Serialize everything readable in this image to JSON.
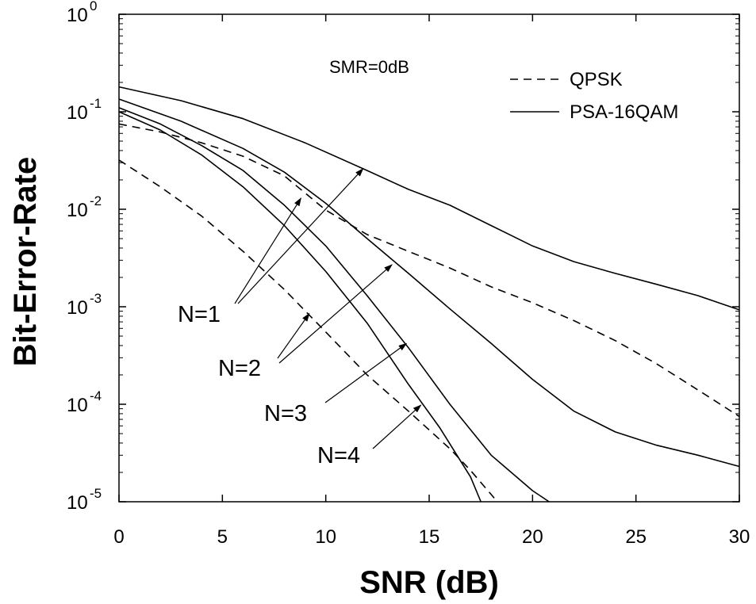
{
  "chart_data": {
    "type": "line",
    "title": "",
    "xlabel": "SNR (dB)",
    "ylabel": "Bit-Error-Rate",
    "xlim": [
      0,
      30
    ],
    "ylim": [
      1e-05,
      1
    ],
    "yscale": "log",
    "grid": false,
    "legend_position": "top-right",
    "x_ticks": [
      0,
      5,
      10,
      15,
      20,
      25,
      30
    ],
    "x_tick_labels": [
      "0",
      "5",
      "10",
      "15",
      "20",
      "25",
      "30"
    ],
    "y_ticks": [
      {
        "value": 1,
        "base": "10",
        "exp": "0"
      },
      {
        "value": 0.1,
        "base": "10",
        "exp": "-1"
      },
      {
        "value": 0.01,
        "base": "10",
        "exp": "-2"
      },
      {
        "value": 0.001,
        "base": "10",
        "exp": "-3"
      },
      {
        "value": 0.0001,
        "base": "10",
        "exp": "-4"
      },
      {
        "value": 1e-05,
        "base": "10",
        "exp": "-5"
      }
    ],
    "annotation": "SMR=0dB",
    "legend": [
      {
        "label": "QPSK",
        "style": "dashed"
      },
      {
        "label": "PSA-16QAM",
        "style": "solid"
      }
    ],
    "series": [
      {
        "group": "QPSK",
        "n": "N=1",
        "style": "dashed",
        "points": [
          [
            0,
            0.075
          ],
          [
            2,
            0.062
          ],
          [
            4,
            0.048
          ],
          [
            6,
            0.035
          ],
          [
            8,
            0.022
          ],
          [
            10,
            0.0098
          ],
          [
            12,
            0.0055
          ],
          [
            14,
            0.0037
          ],
          [
            16,
            0.0025
          ],
          [
            18,
            0.0016
          ],
          [
            20,
            0.0011
          ],
          [
            22,
            0.00072
          ],
          [
            24,
            0.00045
          ],
          [
            26,
            0.00026
          ],
          [
            28,
            0.00014
          ],
          [
            30,
            7.5e-05
          ]
        ]
      },
      {
        "group": "QPSK",
        "n": "N=4",
        "style": "dashed",
        "points": [
          [
            0,
            0.032
          ],
          [
            2,
            0.017
          ],
          [
            4,
            0.0085
          ],
          [
            6,
            0.0037
          ],
          [
            8,
            0.0015
          ],
          [
            10,
            0.00055
          ],
          [
            12,
            0.0002
          ],
          [
            14,
            8.5e-05
          ],
          [
            16,
            3.5e-05
          ],
          [
            17,
            2.1e-05
          ],
          [
            18.3,
            1e-05
          ]
        ]
      },
      {
        "group": "PSA-16QAM",
        "n": "N=1",
        "style": "solid",
        "points": [
          [
            0,
            0.18
          ],
          [
            3,
            0.13
          ],
          [
            6,
            0.085
          ],
          [
            9,
            0.048
          ],
          [
            12,
            0.025
          ],
          [
            14,
            0.016
          ],
          [
            16,
            0.011
          ],
          [
            18,
            0.0068
          ],
          [
            20,
            0.0042
          ],
          [
            22,
            0.0029
          ],
          [
            24,
            0.0022
          ],
          [
            26,
            0.0017
          ],
          [
            28,
            0.0013
          ],
          [
            30,
            0.00093
          ]
        ]
      },
      {
        "group": "PSA-16QAM",
        "n": "N=2",
        "style": "solid",
        "points": [
          [
            0,
            0.135
          ],
          [
            3,
            0.08
          ],
          [
            6,
            0.042
          ],
          [
            8,
            0.024
          ],
          [
            10,
            0.0115
          ],
          [
            12,
            0.005
          ],
          [
            14,
            0.0022
          ],
          [
            16,
            0.00095
          ],
          [
            18,
            0.00042
          ],
          [
            20,
            0.00018
          ],
          [
            22,
            8.5e-05
          ],
          [
            24,
            5.2e-05
          ],
          [
            26,
            3.8e-05
          ],
          [
            28,
            3e-05
          ],
          [
            30,
            2.3e-05
          ]
        ]
      },
      {
        "group": "PSA-16QAM",
        "n": "N=3",
        "style": "solid",
        "points": [
          [
            0,
            0.11
          ],
          [
            2,
            0.075
          ],
          [
            4,
            0.045
          ],
          [
            6,
            0.025
          ],
          [
            8,
            0.011
          ],
          [
            10,
            0.0042
          ],
          [
            12,
            0.0013
          ],
          [
            14,
            0.00038
          ],
          [
            16,
            0.0001
          ],
          [
            18,
            3e-05
          ],
          [
            20,
            1.3e-05
          ],
          [
            20.8,
            1e-05
          ]
        ]
      },
      {
        "group": "PSA-16QAM",
        "n": "N=4",
        "style": "solid",
        "points": [
          [
            0,
            0.1
          ],
          [
            2,
            0.065
          ],
          [
            4,
            0.036
          ],
          [
            6,
            0.017
          ],
          [
            8,
            0.0068
          ],
          [
            10,
            0.0023
          ],
          [
            12,
            0.00068
          ],
          [
            14,
            0.00016
          ],
          [
            15.5,
            5.8e-05
          ],
          [
            17,
            1.8e-05
          ],
          [
            17.5,
            1e-05
          ]
        ]
      }
    ],
    "labels": [
      {
        "text": "N=1",
        "arrows_to": [
          [
            8.8,
            0.013
          ],
          [
            11.8,
            0.026
          ]
        ]
      },
      {
        "text": "N=2",
        "arrows_to": [
          [
            9.2,
            0.00085
          ],
          [
            13.2,
            0.0027
          ]
        ]
      },
      {
        "text": "N=3",
        "arrows_to": [
          [
            13.9,
            0.00042
          ]
        ]
      },
      {
        "text": "N=4",
        "arrows_to": [
          [
            14.6,
            9.8e-05
          ]
        ]
      }
    ]
  }
}
